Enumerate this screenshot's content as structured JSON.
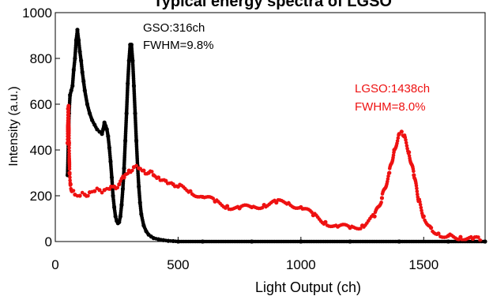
{
  "chart_data": {
    "type": "scatter",
    "title": "Typical energy spectra of LGSO",
    "xlabel": "Light Output (ch)",
    "ylabel": "Intensity (a.u.)",
    "xlim": [
      0,
      1750
    ],
    "ylim": [
      0,
      1000
    ],
    "xticks": [
      0,
      500,
      1000,
      1500
    ],
    "yticks": [
      0,
      200,
      400,
      600,
      800,
      1000
    ],
    "grid": false,
    "series": [
      {
        "name": "GSO",
        "color": "#000000",
        "points": [
          [
            50,
            290
          ],
          [
            53,
            430
          ],
          [
            56,
            560
          ],
          [
            60,
            640
          ],
          [
            65,
            660
          ],
          [
            70,
            680
          ],
          [
            75,
            750
          ],
          [
            80,
            800
          ],
          [
            85,
            880
          ],
          [
            90,
            925
          ],
          [
            95,
            880
          ],
          [
            100,
            830
          ],
          [
            105,
            790
          ],
          [
            110,
            740
          ],
          [
            115,
            700
          ],
          [
            120,
            660
          ],
          [
            130,
            600
          ],
          [
            140,
            560
          ],
          [
            150,
            530
          ],
          [
            160,
            510
          ],
          [
            170,
            490
          ],
          [
            180,
            480
          ],
          [
            190,
            470
          ],
          [
            195,
            490
          ],
          [
            200,
            520
          ],
          [
            205,
            505
          ],
          [
            210,
            490
          ],
          [
            215,
            460
          ],
          [
            220,
            410
          ],
          [
            225,
            350
          ],
          [
            230,
            280
          ],
          [
            235,
            200
          ],
          [
            240,
            150
          ],
          [
            245,
            110
          ],
          [
            250,
            90
          ],
          [
            255,
            80
          ],
          [
            260,
            85
          ],
          [
            265,
            110
          ],
          [
            270,
            160
          ],
          [
            275,
            230
          ],
          [
            280,
            320
          ],
          [
            285,
            440
          ],
          [
            290,
            560
          ],
          [
            295,
            690
          ],
          [
            300,
            790
          ],
          [
            305,
            860
          ],
          [
            310,
            860
          ],
          [
            315,
            790
          ],
          [
            320,
            680
          ],
          [
            325,
            560
          ],
          [
            330,
            440
          ],
          [
            335,
            330
          ],
          [
            340,
            240
          ],
          [
            345,
            170
          ],
          [
            350,
            120
          ],
          [
            360,
            70
          ],
          [
            370,
            45
          ],
          [
            380,
            30
          ],
          [
            390,
            22
          ],
          [
            400,
            15
          ],
          [
            420,
            10
          ],
          [
            440,
            6
          ],
          [
            460,
            3
          ],
          [
            480,
            2
          ],
          [
            500,
            0
          ],
          [
            600,
            0
          ],
          [
            800,
            0
          ],
          [
            1000,
            0
          ],
          [
            1200,
            0
          ],
          [
            1400,
            0
          ],
          [
            1600,
            0
          ],
          [
            1750,
            0
          ]
        ],
        "peak_label": "GSO:316ch",
        "fwhm_label": "FWHM=9.8%"
      },
      {
        "name": "LGSO",
        "color": "#ee1111",
        "points": [
          [
            50,
            430
          ],
          [
            52,
            580
          ],
          [
            54,
            590
          ],
          [
            56,
            430
          ],
          [
            58,
            300
          ],
          [
            62,
            250
          ],
          [
            68,
            220
          ],
          [
            80,
            205
          ],
          [
            100,
            200
          ],
          [
            120,
            205
          ],
          [
            140,
            215
          ],
          [
            160,
            220
          ],
          [
            180,
            225
          ],
          [
            200,
            225
          ],
          [
            220,
            230
          ],
          [
            240,
            240
          ],
          [
            260,
            250
          ],
          [
            280,
            280
          ],
          [
            300,
            310
          ],
          [
            320,
            325
          ],
          [
            340,
            320
          ],
          [
            360,
            310
          ],
          [
            380,
            300
          ],
          [
            400,
            290
          ],
          [
            420,
            280
          ],
          [
            450,
            265
          ],
          [
            480,
            250
          ],
          [
            500,
            240
          ],
          [
            550,
            220
          ],
          [
            600,
            195
          ],
          [
            650,
            175
          ],
          [
            700,
            155
          ],
          [
            750,
            145
          ],
          [
            800,
            150
          ],
          [
            850,
            160
          ],
          [
            900,
            170
          ],
          [
            950,
            168
          ],
          [
            1000,
            150
          ],
          [
            1050,
            115
          ],
          [
            1100,
            85
          ],
          [
            1150,
            65
          ],
          [
            1200,
            60
          ],
          [
            1250,
            70
          ],
          [
            1300,
            110
          ],
          [
            1330,
            190
          ],
          [
            1360,
            300
          ],
          [
            1380,
            400
          ],
          [
            1400,
            470
          ],
          [
            1410,
            480
          ],
          [
            1420,
            460
          ],
          [
            1440,
            390
          ],
          [
            1460,
            290
          ],
          [
            1480,
            180
          ],
          [
            1500,
            110
          ],
          [
            1530,
            60
          ],
          [
            1560,
            35
          ],
          [
            1600,
            25
          ],
          [
            1650,
            20
          ],
          [
            1700,
            12
          ],
          [
            1730,
            5
          ]
        ],
        "peak_label": "LGSO:1438ch",
        "fwhm_label": "FWHM=8.0%"
      }
    ]
  }
}
